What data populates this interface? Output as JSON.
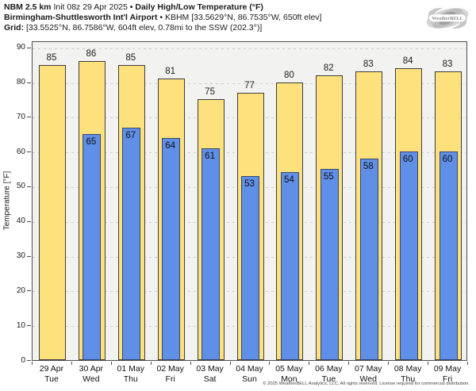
{
  "header": {
    "line1_bold1": "NBM 2.5 km",
    "line1_init": " Init 08z 29 Apr 2025 ",
    "line1_bold2": "• Daily High/Low Temperature (°F)",
    "line2_bold": "Birmingham-Shuttlesworth Int'l Airport",
    "line2_normal": " • KBHM [33.5629°N, 86.7535°W, 650ft elev]",
    "line3_bold": "Grid:",
    "line3_normal": " [33.5525°N, 86.7586°W, 604ft elev, 0.78mi to the SSW (202.3°)]"
  },
  "logo": {
    "text": "WeatherBELL"
  },
  "footer": {
    "copyright": "© 2025 WeatherBELL Analytics, LLC. All rights reserved. License required for commercial distribution."
  },
  "colors": {
    "high_fill": "#fce17c",
    "high_border": "#3d3d3d",
    "low_fill": "#5f8fe6",
    "low_border": "#3a4668",
    "plot_bg": "#f2f2f0",
    "grid": "#cccccc",
    "frame": "#4d4d4d"
  },
  "chart_data": {
    "type": "bar",
    "title": "NBM 2.5 km Init 08z 29 Apr 2025 • Daily High/Low Temperature (°F)",
    "subtitle": "Birmingham-Shuttlesworth Int'l Airport • KBHM",
    "ylabel": "Temperature [°F]",
    "xlabel": "",
    "ylim": [
      0,
      92
    ],
    "yticks": [
      0,
      10,
      20,
      30,
      40,
      50,
      60,
      70,
      80,
      90
    ],
    "grid": true,
    "legend_position": "none",
    "categories": [
      {
        "date": "29 Apr",
        "day": "Tue"
      },
      {
        "date": "30 Apr",
        "day": "Wed"
      },
      {
        "date": "01 May",
        "day": "Thu"
      },
      {
        "date": "02 May",
        "day": "Fri"
      },
      {
        "date": "03 May",
        "day": "Sat"
      },
      {
        "date": "04 May",
        "day": "Sun"
      },
      {
        "date": "05 May",
        "day": "Mon"
      },
      {
        "date": "06 May",
        "day": "Tue"
      },
      {
        "date": "07 May",
        "day": "Wed"
      },
      {
        "date": "08 May",
        "day": "Thu"
      },
      {
        "date": "09 May",
        "day": "Fri"
      }
    ],
    "series": [
      {
        "name": "Daily High",
        "color": "#fce17c",
        "values": [
          85,
          86,
          85,
          81,
          75,
          77,
          80,
          82,
          83,
          84,
          83
        ]
      },
      {
        "name": "Daily Low",
        "color": "#5f8fe6",
        "values": [
          null,
          65,
          67,
          64,
          61,
          53,
          54,
          55,
          58,
          60,
          60
        ]
      }
    ]
  }
}
